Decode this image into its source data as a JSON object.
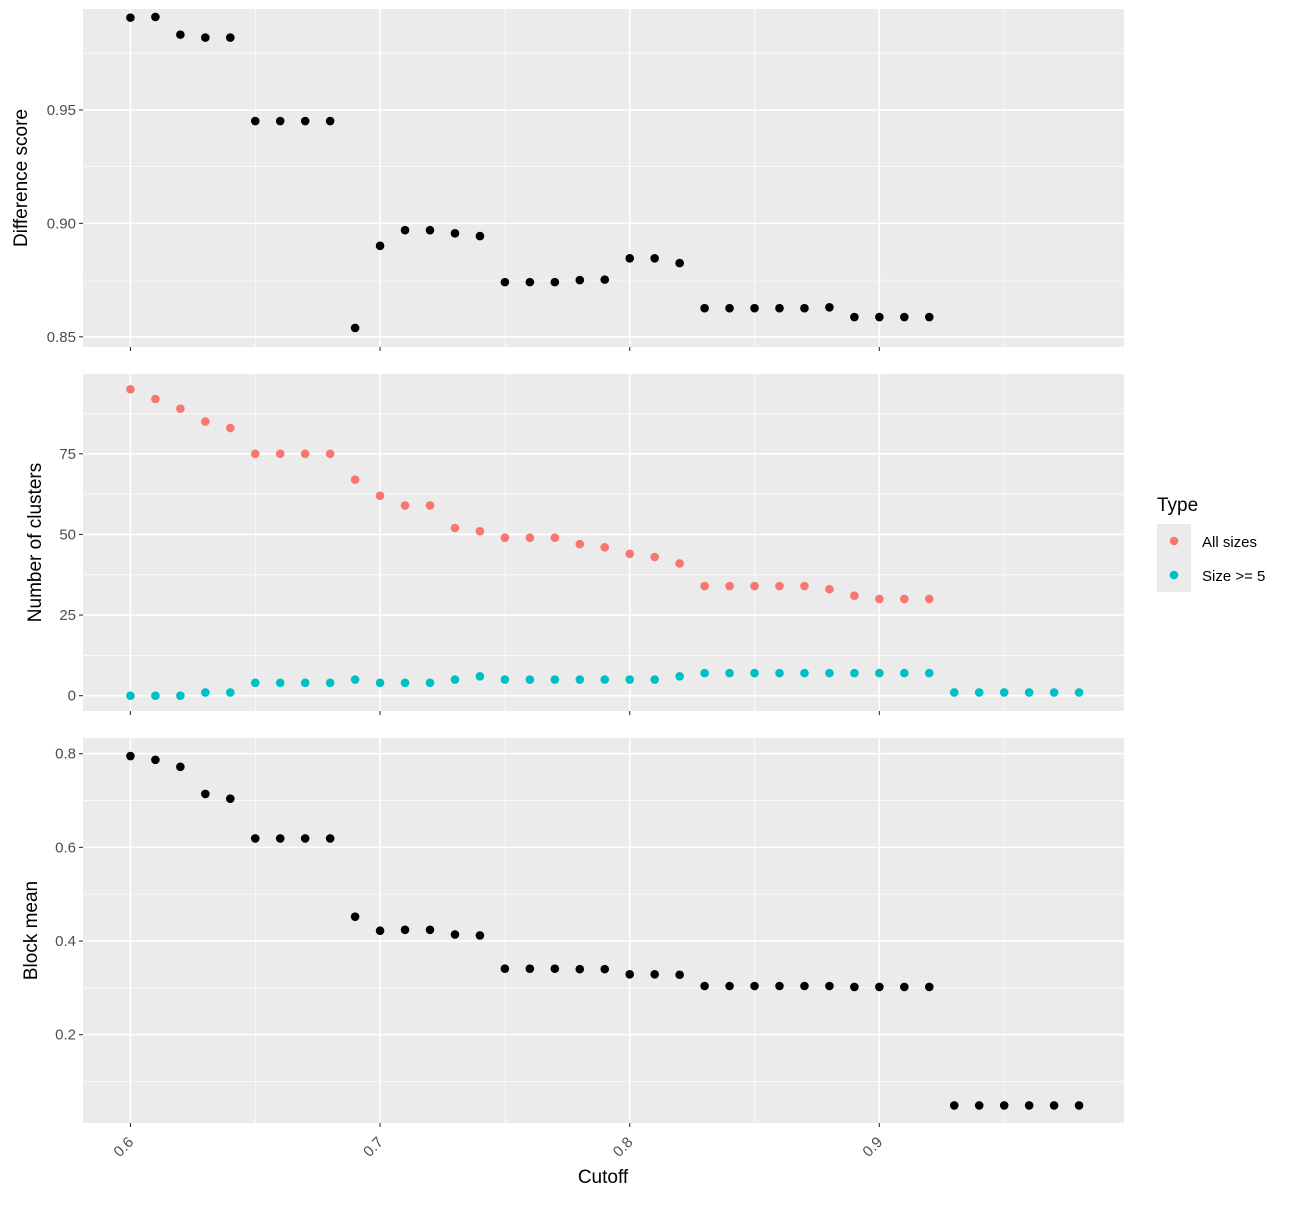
{
  "chart_data": {
    "type": "scatter",
    "xlabel": "Cutoff",
    "x_ticks": [
      0.6,
      0.7,
      0.8,
      0.9
    ],
    "x_tick_labels": [
      "0.6",
      "0.7",
      "0.8",
      "0.9"
    ],
    "xlim": [
      0.581,
      0.998
    ],
    "colors": {
      "point": "#000000",
      "all_sizes": "#F8766D",
      "size5": "#00BFC4",
      "panel_bg": "#EBEBEB",
      "grid": "#FFFFFF"
    },
    "legend": {
      "title": "Type",
      "position": "right",
      "entries": [
        {
          "label": "All sizes",
          "color": "#F8766D"
        },
        {
          "label": "Size >= 5",
          "color": "#00BFC4"
        }
      ]
    },
    "panels": [
      {
        "id": "difference",
        "ylabel": "Difference score",
        "ylim": [
          0.8455,
          0.9945
        ],
        "y_ticks": [
          0.85,
          0.9,
          0.95
        ],
        "y_tick_labels": [
          "0.85",
          "0.90",
          "0.95"
        ],
        "y_minor": [
          0.875,
          0.925,
          0.975
        ],
        "series": [
          {
            "color": "#000000",
            "x": [
              0.6,
              0.61,
              0.62,
              0.63,
              0.64,
              0.65,
              0.66,
              0.67,
              0.68,
              0.69,
              0.7,
              0.71,
              0.72,
              0.73,
              0.74,
              0.75,
              0.76,
              0.77,
              0.78,
              0.79,
              0.8,
              0.81,
              0.82,
              0.83,
              0.84,
              0.85,
              0.86,
              0.87,
              0.88,
              0.89,
              0.9,
              0.91,
              0.92
            ],
            "y": [
              0.9907,
              0.991,
              0.9832,
              0.9819,
              0.9819,
              0.9451,
              0.9451,
              0.9451,
              0.9451,
              0.8539,
              0.8901,
              0.897,
              0.897,
              0.8956,
              0.8944,
              0.8741,
              0.8741,
              0.8741,
              0.875,
              0.8752,
              0.8846,
              0.8846,
              0.8825,
              0.8626,
              0.8626,
              0.8626,
              0.8626,
              0.8626,
              0.863,
              0.8587,
              0.8587,
              0.8587,
              0.8587
            ]
          }
        ]
      },
      {
        "id": "clusters",
        "ylabel": "Number of clusters",
        "ylim": [
          -4.75,
          99.75
        ],
        "y_ticks": [
          0,
          25,
          50,
          75
        ],
        "y_tick_labels": [
          "0",
          "25",
          "50",
          "75"
        ],
        "y_minor": [
          12.5,
          37.5,
          62.5,
          87.5
        ],
        "series": [
          {
            "name": "All sizes",
            "color": "#F8766D",
            "x": [
              0.6,
              0.61,
              0.62,
              0.63,
              0.64,
              0.65,
              0.66,
              0.67,
              0.68,
              0.69,
              0.7,
              0.71,
              0.72,
              0.73,
              0.74,
              0.75,
              0.76,
              0.77,
              0.78,
              0.79,
              0.8,
              0.81,
              0.82,
              0.83,
              0.84,
              0.85,
              0.86,
              0.87,
              0.88,
              0.89,
              0.9,
              0.91,
              0.92
            ],
            "y": [
              95,
              92,
              89,
              85,
              83,
              75,
              75,
              75,
              75,
              67,
              62,
              59,
              59,
              52,
              51,
              49,
              49,
              49,
              47,
              46,
              44,
              43,
              41,
              34,
              34,
              34,
              34,
              34,
              33,
              31,
              30,
              30,
              30
            ]
          },
          {
            "name": "Size >= 5",
            "color": "#00BFC4",
            "x": [
              0.6,
              0.61,
              0.62,
              0.63,
              0.64,
              0.65,
              0.66,
              0.67,
              0.68,
              0.69,
              0.7,
              0.71,
              0.72,
              0.73,
              0.74,
              0.75,
              0.76,
              0.77,
              0.78,
              0.79,
              0.8,
              0.81,
              0.82,
              0.83,
              0.84,
              0.85,
              0.86,
              0.87,
              0.88,
              0.89,
              0.9,
              0.91,
              0.92,
              0.93,
              0.94,
              0.95,
              0.96,
              0.97,
              0.98
            ],
            "y": [
              0,
              0,
              0,
              1,
              1,
              4,
              4,
              4,
              4,
              5,
              4,
              4,
              4,
              5,
              6,
              5,
              5,
              5,
              5,
              5,
              5,
              5,
              6,
              7,
              7,
              7,
              7,
              7,
              7,
              7,
              7,
              7,
              7,
              1,
              1,
              1,
              1,
              1,
              1
            ]
          }
        ]
      },
      {
        "id": "blockmean",
        "ylabel": "Block mean",
        "ylim": [
          0.0115,
          0.8335
        ],
        "y_ticks": [
          0.2,
          0.4,
          0.6,
          0.8
        ],
        "y_tick_labels": [
          "0.2",
          "0.4",
          "0.6",
          "0.8"
        ],
        "y_minor": [
          0.1,
          0.3,
          0.5,
          0.7
        ],
        "series": [
          {
            "color": "#000000",
            "x": [
              0.6,
              0.61,
              0.62,
              0.63,
              0.64,
              0.65,
              0.66,
              0.67,
              0.68,
              0.69,
              0.7,
              0.71,
              0.72,
              0.73,
              0.74,
              0.75,
              0.76,
              0.77,
              0.78,
              0.79,
              0.8,
              0.81,
              0.82,
              0.83,
              0.84,
              0.85,
              0.86,
              0.87,
              0.88,
              0.89,
              0.9,
              0.91,
              0.92,
              0.93,
              0.94,
              0.95,
              0.96,
              0.97,
              0.98
            ],
            "y": [
              0.795,
              0.787,
              0.772,
              0.714,
              0.704,
              0.619,
              0.619,
              0.619,
              0.619,
              0.452,
              0.422,
              0.424,
              0.424,
              0.414,
              0.412,
              0.341,
              0.341,
              0.341,
              0.34,
              0.34,
              0.329,
              0.329,
              0.328,
              0.304,
              0.304,
              0.304,
              0.304,
              0.304,
              0.304,
              0.302,
              0.302,
              0.302,
              0.302,
              0.049,
              0.049,
              0.049,
              0.049,
              0.049,
              0.049
            ]
          }
        ]
      }
    ]
  }
}
